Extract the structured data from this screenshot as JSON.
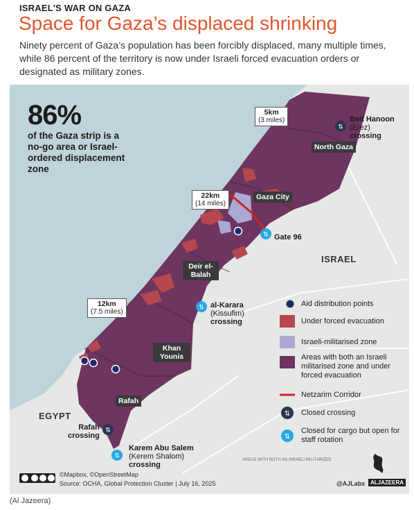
{
  "header": {
    "kicker": "ISRAEL'S WAR ON GAZA",
    "title": "Space for Gaza’s displaced shrinking",
    "description": "Ninety percent of Gaza’s population has been forcibly displaced, many multiple times,  while 86 percent of the territory is now under Israeli forced evacuation orders or designated as military zones."
  },
  "stat": {
    "value": "86%",
    "text": "of the Gaza strip is a no-go area or Israel-ordered displacement zone"
  },
  "regions": {
    "north_gaza": "North Gaza",
    "gaza_city": "Gaza City",
    "deir_el_balah": "Deir el-Balah",
    "khan_younis": "Khan Younis",
    "rafah": "Rafah"
  },
  "countries": {
    "israel": "ISRAEL",
    "egypt": "EGYPT"
  },
  "distances": {
    "top": {
      "km": "5km",
      "miles": "(3 miles)"
    },
    "mid": {
      "km": "22km",
      "miles": "(14 miles)"
    },
    "low": {
      "km": "12km",
      "miles": "(7.5 miles)"
    }
  },
  "crossings": {
    "beit_hanoon": {
      "name": "Beit Hanoon",
      "alt": "(Erez)",
      "word": "crossing"
    },
    "gate_96": {
      "name": "Gate 96"
    },
    "al_karara": {
      "name": "al-Karara",
      "alt": "(Kissufim)",
      "word": "crossing"
    },
    "rafah": {
      "name": "Rafah",
      "word": "crossing"
    },
    "karem_abu_salem": {
      "name": "Karem Abu Salem",
      "alt": "(Kerem Shalom)",
      "word": "crossing"
    }
  },
  "legend": [
    {
      "key": "aid",
      "label": "Aid distribution points",
      "color": "#1f2a6b"
    },
    {
      "key": "evac",
      "label": "Under forced evacuation",
      "color": "#b5474f"
    },
    {
      "key": "military",
      "label": "Israeli-militarised zone",
      "color": "#a9a9d4"
    },
    {
      "key": "both",
      "label": "Areas with both an Israeli militarised zone and under forced evacuation",
      "color": "#6e3561"
    },
    {
      "key": "corridor",
      "label": "Netzarim Corridor",
      "color": "#d42020"
    },
    {
      "key": "closed",
      "label": "Closed crossing",
      "color": "#2c3550"
    },
    {
      "key": "staff",
      "label": "Closed for cargo but open for staff rotation",
      "color": "#29a8e0"
    }
  ],
  "footer": {
    "map_credit": "©Mapbox, ©OpenStreetMap",
    "source": "Source: OCHA, Global Protection Cluster  |  July 16, 2025",
    "handle": "@AJLabs",
    "brand": "ALJAZEERA",
    "fine_print": "AREAS WITH BOTH AN ISRAELI MILITARIZED"
  },
  "image_credit": "(Al Jazeera)",
  "colors": {
    "title": "#e2562d",
    "sea": "#bfd3da",
    "land": "#e6e8e6",
    "both": "#6e3561",
    "evac": "#b5474f",
    "military": "#a9a9d4"
  }
}
